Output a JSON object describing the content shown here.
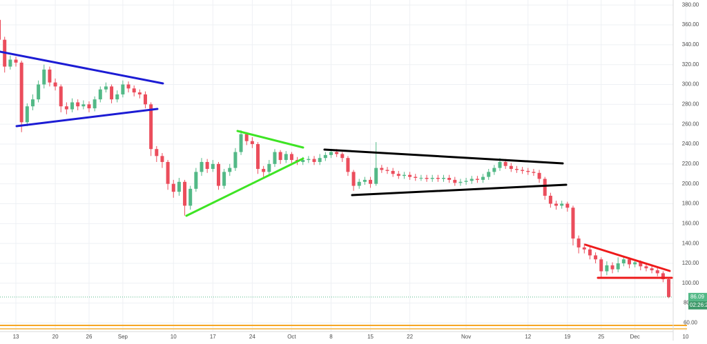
{
  "chart_data": {
    "type": "candlestick",
    "categories": [
      null,
      null,
      null,
      "13",
      null,
      null,
      null,
      null,
      null,
      null,
      "20",
      null,
      null,
      null,
      null,
      null,
      "26",
      null,
      null,
      null,
      null,
      null,
      "Sep",
      null,
      null,
      null,
      null,
      null,
      null,
      null,
      null,
      "10",
      null,
      null,
      null,
      null,
      null,
      null,
      "17",
      null,
      null,
      null,
      null,
      null,
      null,
      "24",
      null,
      null,
      null,
      null,
      null,
      null,
      "Oct",
      null,
      null,
      null,
      null,
      null,
      null,
      "8",
      null,
      null,
      null,
      null,
      null,
      null,
      "15",
      null,
      null,
      null,
      null,
      null,
      null,
      "22",
      null,
      null,
      null,
      null,
      null,
      null,
      null,
      null,
      null,
      "Nov",
      null,
      null,
      null,
      null,
      null,
      null,
      null,
      null,
      null,
      null,
      "12",
      null,
      null,
      null,
      null,
      null,
      null,
      "19",
      null,
      null,
      null,
      null,
      null,
      "25",
      null,
      null,
      null,
      null,
      null,
      "Dec",
      null,
      null,
      null,
      null,
      null,
      null,
      null,
      null,
      "10"
    ],
    "open": [
      365,
      345,
      318,
      325,
      322,
      262,
      278,
      285,
      300,
      315,
      302,
      298,
      278,
      275,
      282,
      278,
      280,
      276,
      285,
      295,
      298,
      285,
      290,
      300,
      296,
      292,
      290,
      280,
      235,
      228,
      222,
      200,
      192,
      202,
      178,
      195,
      212,
      222,
      215,
      220,
      198,
      212,
      216,
      232,
      250,
      243,
      240,
      215,
      212,
      220,
      232,
      224,
      230,
      224,
      222,
      224,
      225,
      222,
      226,
      229,
      232,
      230,
      226,
      212,
      198,
      202,
      204,
      200,
      216,
      214,
      213,
      210,
      208,
      209,
      207,
      206,
      206,
      205,
      206,
      205,
      206,
      204,
      201,
      202,
      203,
      205,
      204,
      207,
      212,
      216,
      222,
      218,
      215,
      214,
      213,
      212,
      211,
      205,
      188,
      180,
      178,
      180,
      176,
      145,
      136,
      134,
      128,
      124,
      112,
      118,
      114,
      120,
      124,
      119,
      121,
      117,
      115,
      113,
      110,
      104,
      null,
      null,
      null
    ],
    "high": [
      368,
      348,
      329,
      328,
      324,
      281,
      290,
      304,
      320,
      318,
      306,
      300,
      282,
      286,
      285,
      284,
      283,
      288,
      298,
      302,
      300,
      294,
      304,
      303,
      299,
      295,
      293,
      282,
      238,
      231,
      224,
      204,
      206,
      204,
      198,
      216,
      226,
      225,
      224,
      222,
      215,
      220,
      236,
      254,
      252,
      247,
      242,
      218,
      224,
      235,
      234,
      233,
      232,
      227,
      227,
      228,
      228,
      230,
      232,
      235,
      235,
      232,
      228,
      214,
      205,
      207,
      207,
      242,
      219,
      217,
      216,
      213,
      212,
      212,
      210,
      209,
      209,
      209,
      209,
      209,
      209,
      207,
      205,
      206,
      208,
      208,
      210,
      215,
      219,
      226,
      225,
      221,
      218,
      217,
      216,
      215,
      214,
      207,
      191,
      183,
      183,
      182,
      178,
      148,
      140,
      137,
      131,
      126,
      122,
      121,
      126,
      127,
      126,
      124,
      123,
      120,
      118,
      116,
      112,
      106,
      null,
      null,
      null
    ],
    "low": [
      342,
      312,
      315,
      318,
      252,
      258,
      274,
      282,
      296,
      298,
      294,
      272,
      270,
      272,
      274,
      275,
      272,
      273,
      282,
      292,
      281,
      282,
      287,
      292,
      288,
      286,
      276,
      228,
      222,
      216,
      194,
      186,
      188,
      168,
      174,
      192,
      208,
      211,
      212,
      194,
      195,
      208,
      213,
      229,
      239,
      236,
      210,
      207,
      209,
      217,
      220,
      221,
      221,
      219,
      219,
      221,
      219,
      219,
      223,
      226,
      227,
      222,
      208,
      193,
      195,
      199,
      196,
      198,
      211,
      210,
      207,
      205,
      205,
      204,
      203,
      203,
      202,
      202,
      202,
      202,
      201,
      198,
      198,
      199,
      200,
      201,
      201,
      204,
      209,
      213,
      215,
      212,
      211,
      210,
      209,
      208,
      201,
      184,
      176,
      174,
      175,
      172,
      138,
      130,
      130,
      124,
      120,
      106,
      108,
      110,
      111,
      117,
      115,
      116,
      113,
      112,
      110,
      107,
      101,
      85,
      null,
      null,
      null
    ],
    "close": [
      345,
      318,
      325,
      322,
      262,
      278,
      285,
      300,
      315,
      302,
      298,
      278,
      275,
      282,
      278,
      280,
      276,
      285,
      295,
      298,
      285,
      290,
      300,
      296,
      292,
      290,
      280,
      235,
      228,
      222,
      200,
      192,
      202,
      178,
      195,
      212,
      222,
      215,
      220,
      198,
      212,
      216,
      232,
      250,
      243,
      240,
      215,
      212,
      220,
      232,
      224,
      230,
      224,
      222,
      224,
      225,
      222,
      226,
      229,
      232,
      230,
      226,
      212,
      198,
      202,
      204,
      200,
      216,
      214,
      213,
      210,
      208,
      209,
      207,
      206,
      206,
      205,
      206,
      205,
      206,
      204,
      201,
      202,
      203,
      205,
      204,
      207,
      212,
      216,
      222,
      218,
      215,
      214,
      213,
      212,
      211,
      205,
      188,
      180,
      178,
      180,
      176,
      145,
      136,
      134,
      128,
      124,
      112,
      118,
      114,
      120,
      124,
      119,
      121,
      117,
      115,
      113,
      110,
      104,
      86.09,
      null,
      null,
      null
    ],
    "up_color": "#53b987",
    "down_color": "#eb4d5c",
    "ylim": [
      52,
      385
    ],
    "yticks": [
      {
        "value": 60,
        "label": "60.00"
      },
      {
        "value": 80,
        "label": "80.00"
      },
      {
        "value": 100,
        "label": "100.00"
      },
      {
        "value": 120,
        "label": "120.00"
      },
      {
        "value": 140,
        "label": "140.00"
      },
      {
        "value": 160,
        "label": "160.00"
      },
      {
        "value": 180,
        "label": "180.00"
      },
      {
        "value": 200,
        "label": "200.00"
      },
      {
        "value": 220,
        "label": "220.00"
      },
      {
        "value": 240,
        "label": "240.00"
      },
      {
        "value": 260,
        "label": "260.00"
      },
      {
        "value": 280,
        "label": "280.00"
      },
      {
        "value": 300,
        "label": "300.00"
      },
      {
        "value": 320,
        "label": "320.00"
      },
      {
        "value": 340,
        "label": "340.00"
      },
      {
        "value": 360,
        "label": "360.00"
      },
      {
        "value": 380,
        "label": "380.00"
      }
    ],
    "grid": true,
    "last_price": 86.09,
    "countdown": "02:26:2"
  }
}
